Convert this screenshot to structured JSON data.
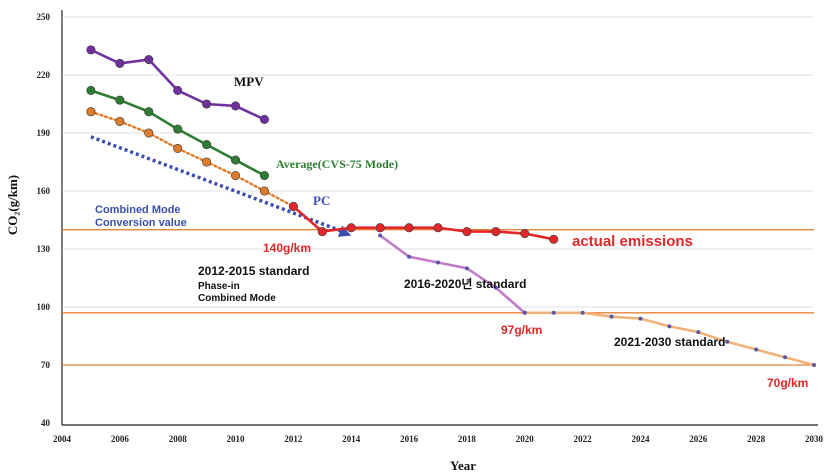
{
  "chart_data": {
    "type": "line",
    "title": "",
    "xlabel": "Year",
    "ylabel": "CO₂(g/km)",
    "xlim": [
      2004,
      2030
    ],
    "ylim": [
      40,
      250
    ],
    "xticks": [
      2004,
      2006,
      2008,
      2010,
      2012,
      2014,
      2016,
      2018,
      2020,
      2022,
      2024,
      2026,
      2028,
      2030
    ],
    "yticks": [
      40,
      70,
      100,
      130,
      160,
      190,
      220,
      250
    ],
    "grid": "horizontal",
    "series": [
      {
        "name": "MPV",
        "color": "#7030a0",
        "style": "solid",
        "marker": "dot",
        "x": [
          2005,
          2006,
          2007,
          2008,
          2009,
          2010,
          2011
        ],
        "y": [
          233,
          226,
          228,
          212,
          205,
          204,
          197
        ]
      },
      {
        "name": "Average(CVS-75 Mode)",
        "color": "#2e7d32",
        "style": "solid",
        "marker": "dot",
        "x": [
          2005,
          2006,
          2007,
          2008,
          2009,
          2010,
          2011
        ],
        "y": [
          212,
          207,
          201,
          192,
          184,
          176,
          168
        ]
      },
      {
        "name": "",
        "color": "#e07b2a",
        "style": "dotted",
        "marker": "dot",
        "x": [
          2005,
          2006,
          2007,
          2008,
          2009,
          2010,
          2011,
          2012
        ],
        "y": [
          201,
          196,
          190,
          182,
          175,
          168,
          160,
          152
        ]
      },
      {
        "name": "PC",
        "color": "#e3262a",
        "style": "solid",
        "marker": "dot",
        "x": [
          2012,
          2013,
          2014,
          2015,
          2016,
          2017,
          2018,
          2019,
          2020,
          2021
        ],
        "y": [
          152,
          139,
          141,
          141,
          141,
          141,
          139,
          139,
          138,
          135
        ]
      },
      {
        "name": "",
        "color": "#c27bc9",
        "style": "solid",
        "marker": "small",
        "x": [
          2015,
          2016,
          2017,
          2018,
          2019,
          2020
        ],
        "y": [
          137,
          126,
          123,
          120,
          110,
          97
        ]
      },
      {
        "name": "",
        "color": "#f1b27a",
        "style": "solid",
        "marker": "small",
        "x": [
          2020,
          2021,
          2022,
          2023,
          2024,
          2025,
          2026,
          2027,
          2028,
          2029,
          2030
        ],
        "y": [
          97,
          97,
          97,
          95,
          94,
          90,
          87,
          82,
          78,
          74,
          70
        ]
      }
    ],
    "reference_lines": [
      {
        "y": 140,
        "color": "#e8833a"
      },
      {
        "y": 97,
        "color": "#e8833a"
      },
      {
        "y": 70,
        "color": "#e8833a"
      }
    ],
    "arrow": {
      "x": [
        2005,
        2014
      ],
      "y": [
        188,
        137
      ],
      "color": "#3a4fae"
    },
    "annotations": {
      "mpv": "MPV",
      "average": "Average(CVS-75 Mode)",
      "pc": "PC",
      "combined_1": "Combined Mode",
      "combined_2": "Conversion value",
      "actual": "actual emissions",
      "std_2012_1": "2012-2015 standard",
      "std_2012_2": "Phase-in",
      "std_2012_3": "Combined Mode",
      "std_2016": "2016-2020년 standard",
      "std_2021": "2021-2030 standard",
      "target_140": "140g/km",
      "target_97": "97g/km",
      "target_70": "70g/km"
    }
  }
}
